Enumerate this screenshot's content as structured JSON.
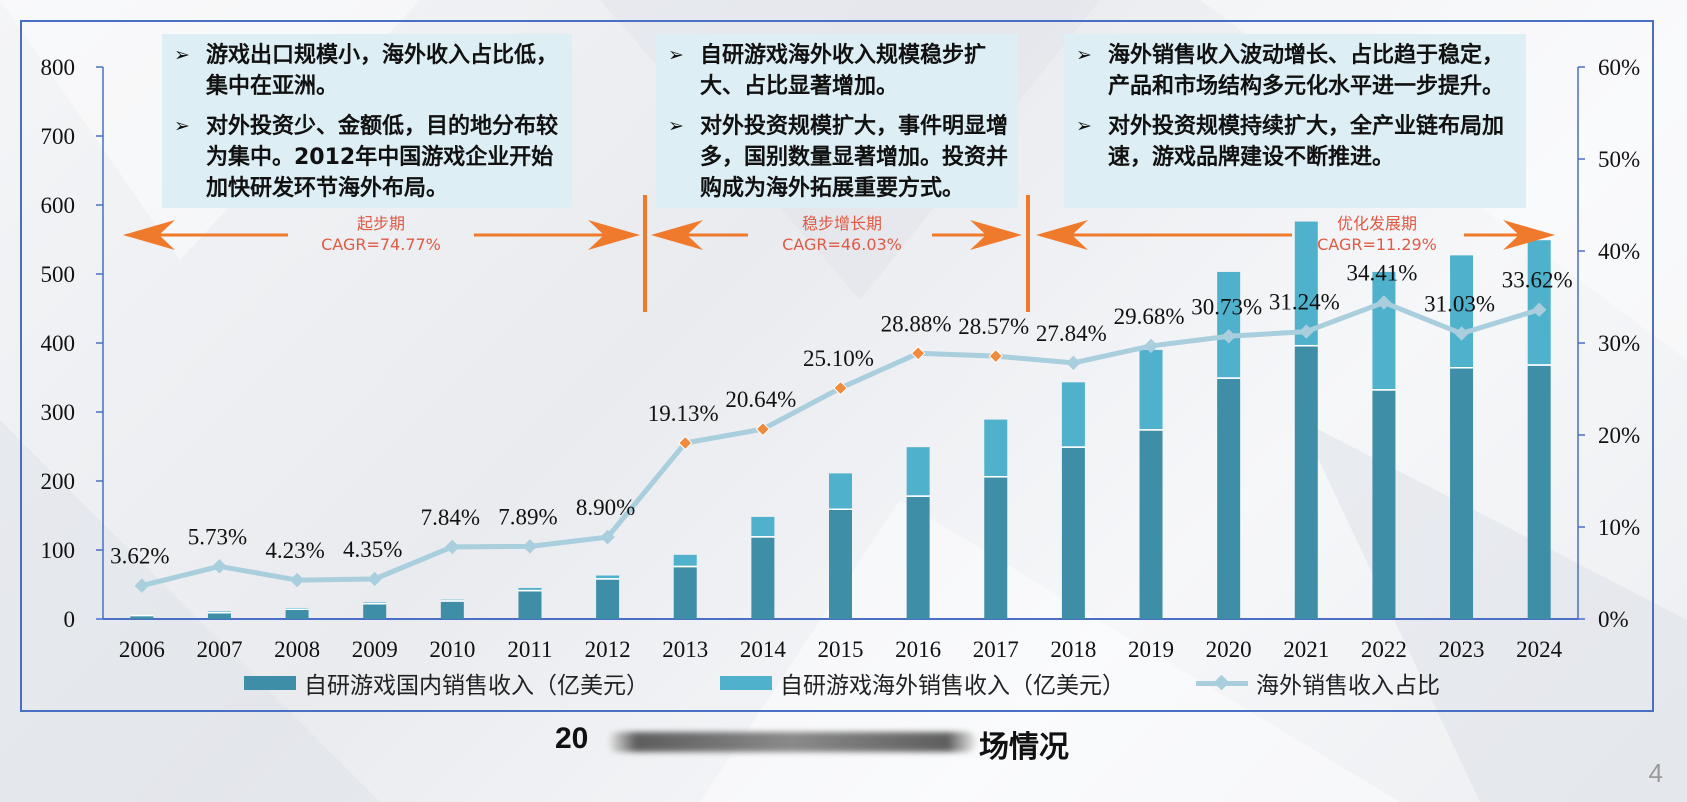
{
  "subtitle": {
    "left": "20",
    "right": "场情况"
  },
  "page_number": "4",
  "callouts": [
    {
      "items": [
        "游戏出口规模小，海外收入占比低，集中在亚洲。",
        "对外投资少、金额低，目的地分布较为集中。2012年中国游戏企业开始加快研发环节海外布局。"
      ]
    },
    {
      "items": [
        "自研游戏海外收入规模稳步扩大、占比显著增加。",
        "对外投资规模扩大，事件明显增多，国别数量显著增加。投资并购成为海外拓展重要方式。"
      ]
    },
    {
      "items": [
        "海外销售收入波动增长、占比趋于稳定，产品和市场结构多元化水平进一步提升。",
        "对外投资规模持续扩大，全产业链布局加速，游戏品牌建设不断推进。"
      ]
    }
  ],
  "phases": [
    {
      "name": "起步期",
      "cagr": "CAGR=74.77%"
    },
    {
      "name": "稳步增长期",
      "cagr": "CAGR=46.03%"
    },
    {
      "name": "优化发展期",
      "cagr": "CAGR=11.29%"
    }
  ],
  "colors": {
    "domestic": "#3f8ea8",
    "overseas": "#4fb1cb",
    "ratio_line": "#a9cedd",
    "ratio_marker_mid": "#f08a3c",
    "arrow": "#f07a2c",
    "phase_text": "#e05a44",
    "axis": "#4a6fc4"
  },
  "chart_data": {
    "type": "bar",
    "categories": [
      "2006",
      "2007",
      "2008",
      "2009",
      "2010",
      "2011",
      "2012",
      "2013",
      "2014",
      "2015",
      "2016",
      "2017",
      "2018",
      "2019",
      "2020",
      "2021",
      "2022",
      "2023",
      "2024"
    ],
    "series": [
      {
        "name": "自研游戏国内销售收入（亿美元）",
        "type": "bar",
        "stack": "total",
        "axis": "left",
        "values": [
          4,
          8,
          13,
          21,
          25,
          40,
          57,
          75,
          118,
          158,
          177,
          205,
          248,
          273,
          348,
          395,
          331,
          363,
          367
        ]
      },
      {
        "name": "自研游戏海外销售收入（亿美元）",
        "type": "bar",
        "stack": "total",
        "axis": "left",
        "values": [
          2,
          3,
          3,
          3,
          3,
          5,
          6,
          18,
          30,
          53,
          72,
          84,
          95,
          117,
          155,
          181,
          172,
          164,
          182
        ]
      },
      {
        "name": "海外销售收入占比",
        "type": "line",
        "axis": "right",
        "values": [
          3.62,
          5.73,
          4.23,
          4.35,
          7.84,
          7.89,
          8.9,
          19.13,
          20.64,
          25.1,
          28.88,
          28.57,
          27.84,
          29.68,
          30.73,
          31.24,
          34.41,
          31.03,
          33.62
        ],
        "labels": [
          "3.62%",
          "5.73%",
          "4.23%",
          "4.35%",
          "7.84%",
          "7.89%",
          "8.90%",
          "19.13%",
          "20.64%",
          "25.10%",
          "28.88%",
          "28.57%",
          "27.84%",
          "29.68%",
          "30.73%",
          "31.24%",
          "34.41%",
          "31.03%",
          "33.62%"
        ]
      }
    ],
    "y_left": {
      "ylim": [
        0,
        800
      ],
      "ticks": [
        "0",
        "100",
        "200",
        "300",
        "400",
        "500",
        "600",
        "700",
        "800"
      ]
    },
    "y_right": {
      "ylim": [
        0,
        60
      ],
      "ticks": [
        "0%",
        "10%",
        "20%",
        "30%",
        "40%",
        "50%",
        "60%"
      ]
    },
    "grid": false,
    "legend_position": "bottom"
  }
}
